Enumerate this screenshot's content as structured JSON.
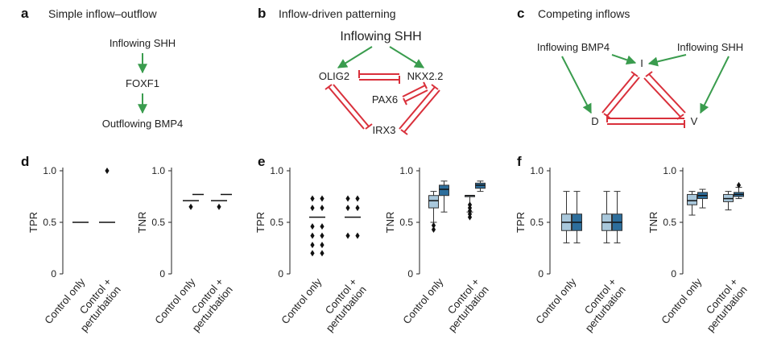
{
  "panels": {
    "a": {
      "label": "a",
      "title": "Simple inflow–outflow",
      "nodes": [
        "Inflowing SHH",
        "FOXF1",
        "Outflowing BMP4"
      ]
    },
    "b": {
      "label": "b",
      "title": "Inflow-driven patterning",
      "nodes": {
        "shh": "Inflowing SHH",
        "olig2": "OLIG2",
        "nkx22": "NKX2.2",
        "pax6": "PAX6",
        "irx3": "IRX3"
      }
    },
    "c": {
      "label": "c",
      "title": "Competing inflows",
      "nodes": {
        "bmp4": "Inflowing BMP4",
        "shh": "Inflowing SHH",
        "i": "I",
        "d": "D",
        "v": "V"
      }
    },
    "d": {
      "label": "d"
    },
    "e": {
      "label": "e"
    },
    "f": {
      "label": "f"
    }
  },
  "colors": {
    "activation": "#3a9c4e",
    "repression": "#d9303b",
    "light_box": "#a9c8dc",
    "dark_box": "#2d6e9c"
  },
  "x_categories": [
    "Control only",
    "Control +",
    "perturbation"
  ],
  "chart_data": [
    {
      "id": "d-tpr",
      "type": "scatter",
      "ylabel": "TPR",
      "ylim": [
        0,
        1
      ],
      "yticks": [
        "0",
        "0.5",
        "1.0"
      ],
      "categories": [
        "Control only",
        "Control + perturbation"
      ],
      "medians": [
        0.5,
        0.5
      ],
      "points": [
        [],
        [
          1.0
        ]
      ]
    },
    {
      "id": "d-tnr",
      "type": "scatter",
      "ylabel": "TNR",
      "ylim": [
        0,
        1
      ],
      "yticks": [
        "0",
        "0.5",
        "1.0"
      ],
      "categories": [
        "Control only",
        "Control + perturbation"
      ],
      "medians": [
        0.71,
        0.71
      ],
      "medians2": [
        0.77,
        0.77
      ],
      "points": [
        [
          0.65
        ],
        [
          0.65
        ]
      ]
    },
    {
      "id": "e-tpr",
      "type": "scatter",
      "ylabel": "TPR",
      "ylim": [
        0,
        1
      ],
      "yticks": [
        "0",
        "0.5",
        "1.0"
      ],
      "categories": [
        "Control only",
        "Control + perturbation"
      ],
      "medians": [
        0.55,
        0.55
      ],
      "points": [
        [
          0.2,
          0.2,
          0.28,
          0.28,
          0.37,
          0.37,
          0.46,
          0.46,
          0.64,
          0.64,
          0.73,
          0.73
        ],
        [
          0.37,
          0.37,
          0.64,
          0.64,
          0.73,
          0.73
        ]
      ]
    },
    {
      "id": "e-tnr",
      "type": "box",
      "ylabel": "TNR",
      "ylim": [
        0,
        1
      ],
      "yticks": [
        "0",
        "0.5",
        "1.0"
      ],
      "categories": [
        "Control only",
        "Control + perturbation"
      ],
      "series": [
        {
          "boxes": [
            {
              "q1": 0.64,
              "median": 0.71,
              "q3": 0.76,
              "lo": 0.5,
              "hi": 0.8,
              "outliers": [
                0.43,
                0.47
              ]
            },
            {
              "q1": 0.76,
              "median": 0.76,
              "q3": 0.76,
              "lo": 0.6,
              "hi": 0.76,
              "outliers": [
                0.55,
                0.58,
                0.61,
                0.64,
                0.67
              ]
            }
          ]
        },
        {
          "boxes": [
            {
              "q1": 0.76,
              "median": 0.82,
              "q3": 0.86,
              "lo": 0.6,
              "hi": 0.9,
              "outliers": []
            },
            {
              "q1": 0.83,
              "median": 0.86,
              "q3": 0.88,
              "lo": 0.8,
              "hi": 0.9,
              "outliers": []
            }
          ]
        }
      ]
    },
    {
      "id": "f-tpr",
      "type": "box",
      "ylabel": "TPR",
      "ylim": [
        0,
        1
      ],
      "yticks": [
        "0",
        "0.5",
        "1.0"
      ],
      "categories": [
        "Control only",
        "Control + perturbation"
      ],
      "series": [
        {
          "boxes": [
            {
              "q1": 0.42,
              "median": 0.5,
              "q3": 0.58,
              "lo": 0.3,
              "hi": 0.8,
              "outliers": []
            },
            {
              "q1": 0.42,
              "median": 0.5,
              "q3": 0.58,
              "lo": 0.3,
              "hi": 0.8,
              "outliers": []
            }
          ]
        },
        {
          "boxes": [
            {
              "q1": 0.42,
              "median": 0.5,
              "q3": 0.58,
              "lo": 0.3,
              "hi": 0.8,
              "outliers": []
            },
            {
              "q1": 0.42,
              "median": 0.5,
              "q3": 0.58,
              "lo": 0.3,
              "hi": 0.8,
              "outliers": []
            }
          ]
        }
      ]
    },
    {
      "id": "f-tnr",
      "type": "box",
      "ylabel": "TNR",
      "ylim": [
        0,
        1
      ],
      "yticks": [
        "0",
        "0.5",
        "1.0"
      ],
      "categories": [
        "Control only",
        "Control + perturbation"
      ],
      "series": [
        {
          "boxes": [
            {
              "q1": 0.67,
              "median": 0.71,
              "q3": 0.77,
              "lo": 0.57,
              "hi": 0.8,
              "outliers": []
            },
            {
              "q1": 0.7,
              "median": 0.73,
              "q3": 0.77,
              "lo": 0.62,
              "hi": 0.8,
              "outliers": []
            }
          ]
        },
        {
          "boxes": [
            {
              "q1": 0.73,
              "median": 0.76,
              "q3": 0.79,
              "lo": 0.64,
              "hi": 0.82,
              "outliers": []
            },
            {
              "q1": 0.75,
              "median": 0.77,
              "q3": 0.79,
              "lo": 0.73,
              "hi": 0.84,
              "outliers": [
                0.86
              ]
            }
          ]
        }
      ]
    }
  ]
}
